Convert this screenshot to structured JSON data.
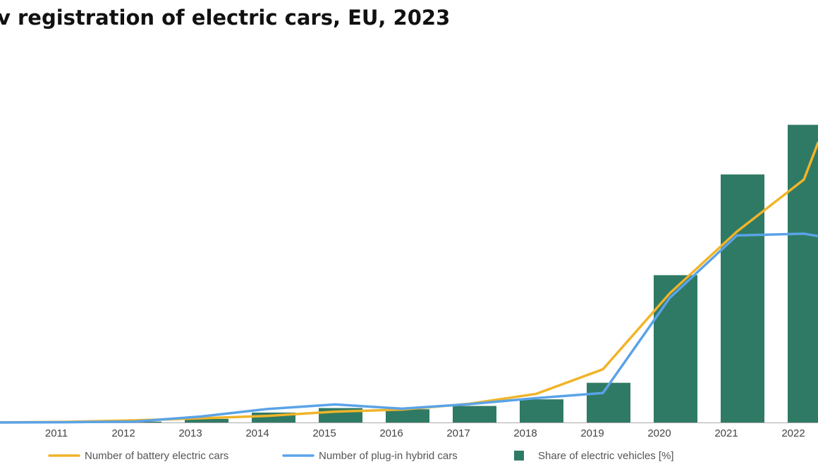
{
  "title": "v registration of electric cars, EU, 2023",
  "colors": {
    "bev": "#F0B429",
    "phev": "#5AA3E8",
    "share": "#2F7A64",
    "axis": "#aaaaaa",
    "background": "#ffffff"
  },
  "chart_data": {
    "type": "bar+line",
    "title": "v registration of electric cars, EU, 2023",
    "categories": [
      "2011",
      "2012",
      "2013",
      "2014",
      "2015",
      "2016",
      "2017",
      "2018",
      "2019",
      "2020",
      "2021",
      "2022"
    ],
    "xlabel": "",
    "ylabel": "",
    "ylim": [
      0,
      100
    ],
    "series": [
      {
        "name": "Share of electric vehicles [%]",
        "type": "bar",
        "values": [
          0.1,
          0.3,
          1.2,
          3.3,
          4.8,
          4.4,
          5.5,
          7.7,
          13.2,
          49.0,
          82.5,
          99.0
        ]
      },
      {
        "name": "Number of battery electric cars",
        "type": "line",
        "values": [
          0.2,
          0.7,
          1.4,
          2.2,
          3.6,
          4.3,
          6.2,
          9.5,
          17.7,
          43.0,
          63.5,
          80.8
        ],
        "start": 0,
        "end": 93
      },
      {
        "name": "Number of plug-in hybrid cars",
        "type": "line",
        "values": [
          0.1,
          0.3,
          2.0,
          4.5,
          6.0,
          4.6,
          6.1,
          8.1,
          9.8,
          41.5,
          62.2,
          62.8
        ],
        "start": 0,
        "end": 62.0
      }
    ],
    "legend": [
      {
        "label": "Number of battery electric cars",
        "kind": "line",
        "color": "#F0B429"
      },
      {
        "label": "Number of plug-in hybrid cars",
        "kind": "line",
        "color": "#5AA3E8"
      },
      {
        "label": "Share of electric vehicles [%]",
        "kind": "square",
        "color": "#2F7A64"
      }
    ],
    "legend_position": "bottom"
  }
}
